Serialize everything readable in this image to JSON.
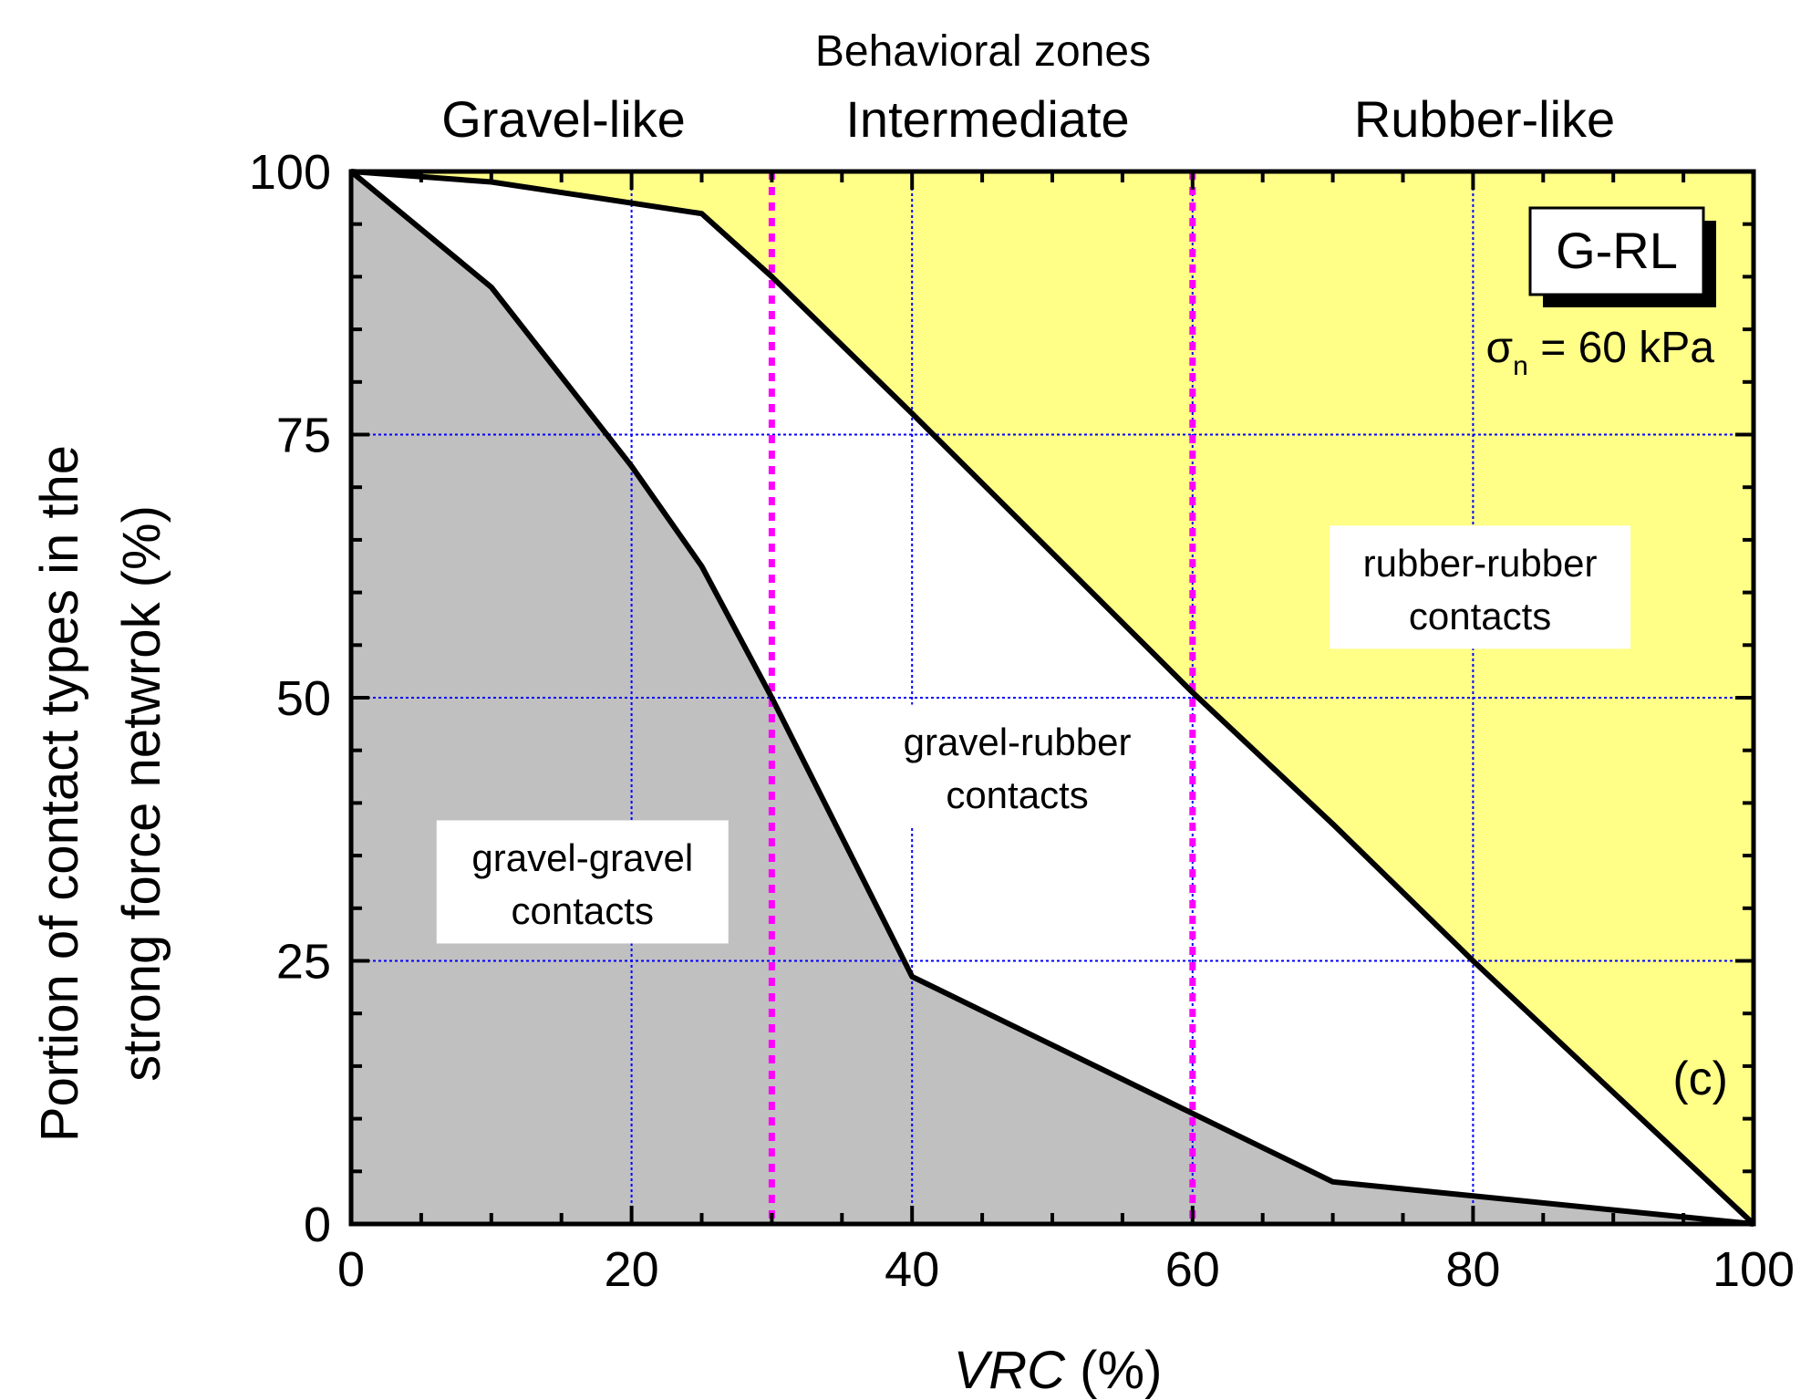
{
  "chart_data": {
    "type": "area",
    "title": "Behavioral zones",
    "zones": [
      "Gravel-like",
      "Intermediate",
      "Rubber-like"
    ],
    "zone_boundaries": [
      30,
      60
    ],
    "xlabel": "VRC",
    "xlabel_unit": " (%)",
    "ylabel_lines": [
      "Portion of contact types in the",
      "strong force netwrok (%)"
    ],
    "xlim": [
      0,
      100
    ],
    "ylim": [
      0,
      100
    ],
    "xticks": [
      0,
      20,
      40,
      60,
      80,
      100
    ],
    "yticks": [
      0,
      25,
      50,
      75,
      100
    ],
    "grid": true,
    "series": [
      {
        "name": "gravel-gravel contacts",
        "fill": "#c0c0c0",
        "x": [
          0,
          10,
          20,
          25,
          30,
          40,
          60,
          70,
          100
        ],
        "y": [
          100,
          89,
          72,
          62.5,
          50,
          23.5,
          10.5,
          4,
          0
        ]
      },
      {
        "name": "gravel-rubber contacts",
        "fill": "#ffffff",
        "x": [
          0,
          10,
          25,
          30,
          40,
          60,
          70,
          80,
          100
        ],
        "y": [
          100,
          99,
          96,
          90,
          77,
          50.5,
          38,
          25,
          0
        ]
      },
      {
        "name": "rubber-rubber contacts",
        "fill": "#ffff88"
      }
    ],
    "region_labels": [
      {
        "lines": [
          "gravel-gravel",
          "contacts"
        ]
      },
      {
        "lines": [
          "gravel-rubber",
          "contacts"
        ]
      },
      {
        "lines": [
          "rubber-rubber",
          "contacts"
        ]
      }
    ],
    "legend_box": "G-RL",
    "stress_symbol": "σ",
    "stress_subscript": "n",
    "stress_value": " = 60 kPa",
    "panel_label": "(c)",
    "colors": {
      "gravel_fill": "#c0c0c0",
      "rubber_fill": "#ffff88",
      "grid": "#0000ff",
      "zone_line": "#ff00ff",
      "curve": "#000000"
    }
  }
}
